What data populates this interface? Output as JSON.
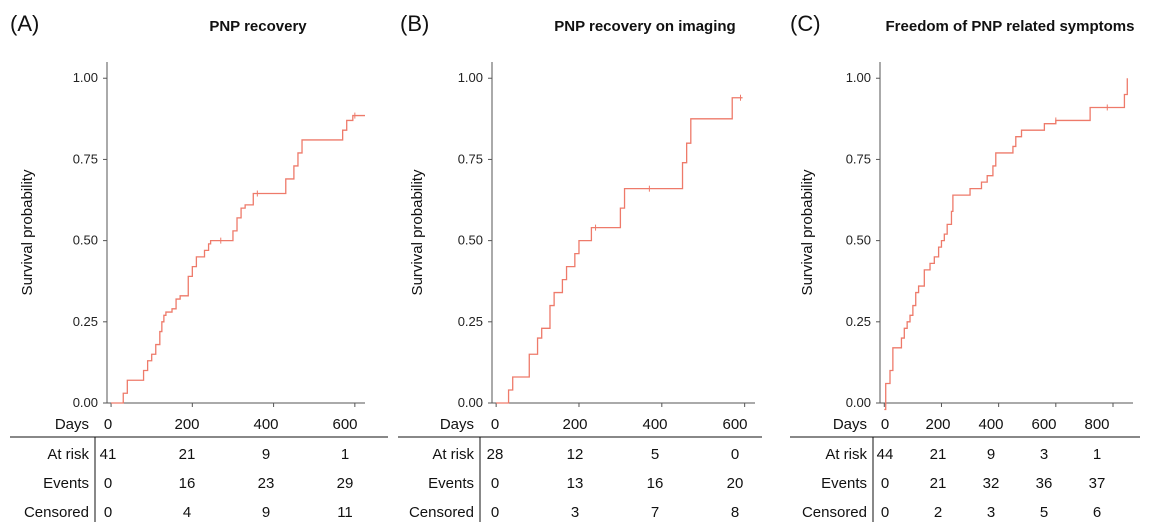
{
  "chart_data": [
    {
      "type": "line",
      "panel_label": "(A)",
      "title": "PNP recovery",
      "xlabel": "Days",
      "ylabel": "Survival probability",
      "xlim": [
        -10,
        625
      ],
      "ylim": [
        0,
        1.05
      ],
      "x_ticks": [
        0,
        200,
        400,
        600
      ],
      "y_ticks": [
        "0.00",
        "0.25",
        "0.50",
        "0.75",
        "1.00"
      ],
      "series": [
        {
          "steps": [
            [
              0,
              0
            ],
            [
              30,
              0.03
            ],
            [
              40,
              0.07
            ],
            [
              70,
              0.07
            ],
            [
              80,
              0.1
            ],
            [
              90,
              0.13
            ],
            [
              100,
              0.15
            ],
            [
              110,
              0.18
            ],
            [
              120,
              0.22
            ],
            [
              125,
              0.25
            ],
            [
              130,
              0.27
            ],
            [
              135,
              0.28
            ],
            [
              150,
              0.29
            ],
            [
              160,
              0.32
            ],
            [
              170,
              0.33
            ],
            [
              190,
              0.39
            ],
            [
              200,
              0.42
            ],
            [
              210,
              0.45
            ],
            [
              230,
              0.47
            ],
            [
              240,
              0.49
            ],
            [
              245,
              0.5
            ],
            [
              300,
              0.53
            ],
            [
              310,
              0.57
            ],
            [
              320,
              0.6
            ],
            [
              330,
              0.61
            ],
            [
              350,
              0.645
            ],
            [
              430,
              0.69
            ],
            [
              450,
              0.73
            ],
            [
              460,
              0.77
            ],
            [
              470,
              0.81
            ],
            [
              570,
              0.84
            ],
            [
              580,
              0.87
            ],
            [
              595,
              0.885
            ],
            [
              625,
              0.885
            ]
          ],
          "censored": [
            [
              270,
              0.5
            ],
            [
              360,
              0.645
            ],
            [
              600,
              0.885
            ]
          ]
        }
      ],
      "risk_table": {
        "time_header": "Days",
        "times": [
          0,
          200,
          400,
          600
        ],
        "rows": [
          {
            "label": "At risk",
            "values": [
              "41",
              "21",
              "9",
              "1"
            ]
          },
          {
            "label": "Events",
            "values": [
              "0",
              "16",
              "23",
              "29"
            ]
          },
          {
            "label": "Censored",
            "values": [
              "0",
              "4",
              "9",
              "11"
            ]
          }
        ]
      }
    },
    {
      "type": "line",
      "panel_label": "(B)",
      "title": "PNP recovery on imaging",
      "xlabel": "Days",
      "ylabel": "Survival probability",
      "xlim": [
        -10,
        625
      ],
      "ylim": [
        0,
        1.05
      ],
      "x_ticks": [
        0,
        200,
        400,
        600
      ],
      "y_ticks": [
        "0.00",
        "0.25",
        "0.50",
        "0.75",
        "1.00"
      ],
      "series": [
        {
          "steps": [
            [
              0,
              0
            ],
            [
              30,
              0.04
            ],
            [
              40,
              0.08
            ],
            [
              70,
              0.08
            ],
            [
              80,
              0.15
            ],
            [
              100,
              0.2
            ],
            [
              110,
              0.23
            ],
            [
              130,
              0.3
            ],
            [
              140,
              0.34
            ],
            [
              160,
              0.38
            ],
            [
              170,
              0.42
            ],
            [
              190,
              0.46
            ],
            [
              200,
              0.5
            ],
            [
              230,
              0.54
            ],
            [
              300,
              0.6
            ],
            [
              310,
              0.66
            ],
            [
              450,
              0.74
            ],
            [
              460,
              0.8
            ],
            [
              470,
              0.875
            ],
            [
              570,
              0.94
            ],
            [
              595,
              0.94
            ]
          ],
          "censored": [
            [
              240,
              0.54
            ],
            [
              370,
              0.66
            ],
            [
              590,
              0.94
            ]
          ]
        }
      ],
      "risk_table": {
        "time_header": "Days",
        "times": [
          0,
          200,
          400,
          600
        ],
        "rows": [
          {
            "label": "At risk",
            "values": [
              "28",
              "12",
              "5",
              "0"
            ]
          },
          {
            "label": "Events",
            "values": [
              "0",
              "13",
              "16",
              "20"
            ]
          },
          {
            "label": "Censored",
            "values": [
              "0",
              "3",
              "7",
              "8"
            ]
          }
        ]
      }
    },
    {
      "type": "line",
      "panel_label": "(C)",
      "title": "Freedom of PNP related symptoms",
      "xlabel": "Days",
      "ylabel": "Survival probability",
      "xlim": [
        -15,
        870
      ],
      "ylim": [
        0,
        1.05
      ],
      "x_ticks": [
        0,
        200,
        400,
        600,
        800
      ],
      "y_ticks": [
        "0.00",
        "0.25",
        "0.50",
        "0.75",
        "1.00"
      ],
      "series": [
        {
          "steps": [
            [
              0,
              -0.02
            ],
            [
              5,
              0.06
            ],
            [
              20,
              0.1
            ],
            [
              30,
              0.17
            ],
            [
              60,
              0.2
            ],
            [
              70,
              0.23
            ],
            [
              80,
              0.25
            ],
            [
              90,
              0.27
            ],
            [
              100,
              0.3
            ],
            [
              110,
              0.34
            ],
            [
              120,
              0.36
            ],
            [
              140,
              0.41
            ],
            [
              160,
              0.43
            ],
            [
              175,
              0.45
            ],
            [
              190,
              0.48
            ],
            [
              200,
              0.5
            ],
            [
              210,
              0.52
            ],
            [
              220,
              0.55
            ],
            [
              235,
              0.59
            ],
            [
              240,
              0.64
            ],
            [
              300,
              0.66
            ],
            [
              340,
              0.68
            ],
            [
              360,
              0.7
            ],
            [
              380,
              0.73
            ],
            [
              390,
              0.77
            ],
            [
              450,
              0.79
            ],
            [
              460,
              0.82
            ],
            [
              480,
              0.84
            ],
            [
              560,
              0.86
            ],
            [
              600,
              0.87
            ],
            [
              720,
              0.91
            ],
            [
              840,
              0.95
            ],
            [
              850,
              1.0
            ]
          ],
          "censored": [
            [
              600,
              0.87
            ],
            [
              780,
              0.91
            ]
          ]
        }
      ],
      "risk_table": {
        "time_header": "Days",
        "times": [
          0,
          200,
          400,
          600,
          800
        ],
        "rows": [
          {
            "label": "At risk",
            "values": [
              "44",
              "21",
              "9",
              "3",
              "1"
            ]
          },
          {
            "label": "Events",
            "values": [
              "0",
              "21",
              "32",
              "36",
              "37"
            ]
          },
          {
            "label": "Censored",
            "values": [
              "0",
              "2",
              "3",
              "5",
              "6"
            ]
          }
        ]
      }
    }
  ]
}
